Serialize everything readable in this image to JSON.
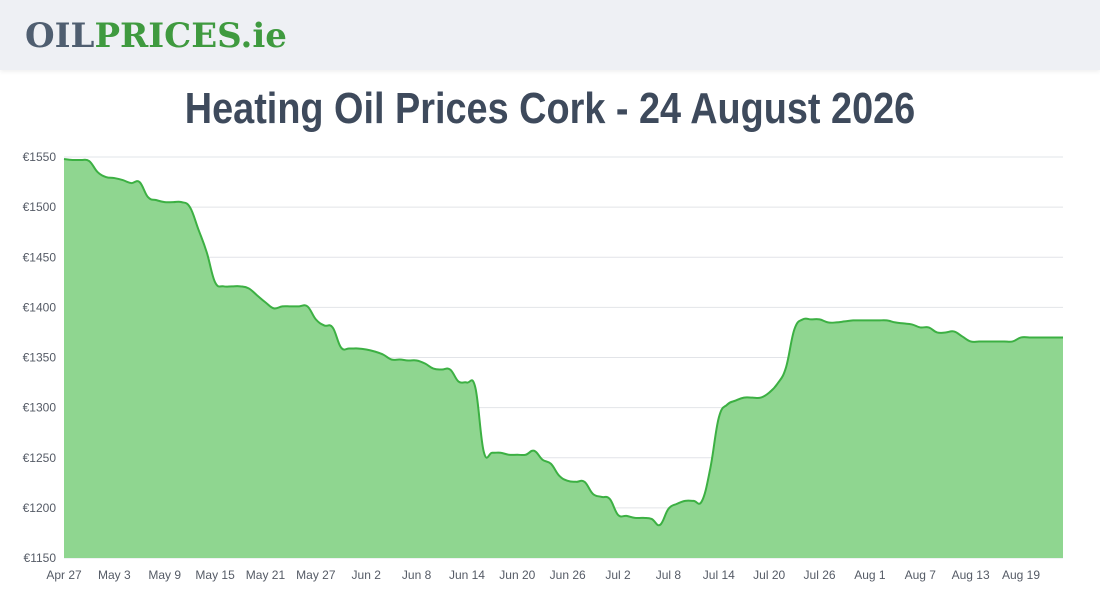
{
  "header": {
    "logo_oil": "OIL",
    "logo_prices": "PRICES",
    "logo_ie": ".ie"
  },
  "page": {
    "title": "Heating Oil Prices Cork - 24 August 2026"
  },
  "colors": {
    "line": "#3cb043",
    "fill": "#8fd690",
    "grid": "#e2e4e8"
  },
  "chart_data": {
    "type": "area",
    "title": "Heating Oil Prices Cork - 24 August 2026",
    "xlabel": "",
    "ylabel": "",
    "ylim": [
      1150,
      1550
    ],
    "y_ticks": [
      "€1150",
      "€1200",
      "€1250",
      "€1300",
      "€1350",
      "€1400",
      "€1450",
      "€1500",
      "€1550"
    ],
    "x_ticks": [
      "Apr 27",
      "May 3",
      "May 9",
      "May 15",
      "May 21",
      "May 27",
      "Jun 2",
      "Jun 8",
      "Jun 14",
      "Jun 20",
      "Jun 26",
      "Jul 2",
      "Jul 8",
      "Jul 14",
      "Jul 20",
      "Jul 26",
      "Aug 1",
      "Aug 7",
      "Aug 13",
      "Aug 19"
    ],
    "grid": true,
    "legend": "none",
    "series": [
      {
        "x": [
          "2026-04-27",
          "2026-04-28",
          "2026-04-29",
          "2026-04-30",
          "2026-05-01",
          "2026-05-02",
          "2026-05-03",
          "2026-05-04",
          "2026-05-05",
          "2026-05-06",
          "2026-05-07",
          "2026-05-08",
          "2026-05-09",
          "2026-05-10",
          "2026-05-11",
          "2026-05-12",
          "2026-05-13",
          "2026-05-14",
          "2026-05-15",
          "2026-05-16",
          "2026-05-17",
          "2026-05-18",
          "2026-05-19",
          "2026-05-20",
          "2026-05-21",
          "2026-05-22",
          "2026-05-23",
          "2026-05-24",
          "2026-05-25",
          "2026-05-26",
          "2026-05-27",
          "2026-05-28",
          "2026-05-29",
          "2026-05-30",
          "2026-05-31",
          "2026-06-01",
          "2026-06-02",
          "2026-06-03",
          "2026-06-04",
          "2026-06-05",
          "2026-06-06",
          "2026-06-07",
          "2026-06-08",
          "2026-06-09",
          "2026-06-10",
          "2026-06-11",
          "2026-06-12",
          "2026-06-13",
          "2026-06-14",
          "2026-06-15",
          "2026-06-16",
          "2026-06-17",
          "2026-06-18",
          "2026-06-19",
          "2026-06-20",
          "2026-06-21",
          "2026-06-22",
          "2026-06-23",
          "2026-06-24",
          "2026-06-25",
          "2026-06-26",
          "2026-06-27",
          "2026-06-28",
          "2026-06-29",
          "2026-06-30",
          "2026-07-01",
          "2026-07-02",
          "2026-07-03",
          "2026-07-04",
          "2026-07-05",
          "2026-07-06",
          "2026-07-07",
          "2026-07-08",
          "2026-07-09",
          "2026-07-10",
          "2026-07-11",
          "2026-07-12",
          "2026-07-13",
          "2026-07-14",
          "2026-07-15",
          "2026-07-16",
          "2026-07-17",
          "2026-07-18",
          "2026-07-19",
          "2026-07-20",
          "2026-07-21",
          "2026-07-22",
          "2026-07-23",
          "2026-07-24",
          "2026-07-25",
          "2026-07-26",
          "2026-07-27",
          "2026-07-28",
          "2026-07-29",
          "2026-07-30",
          "2026-07-31",
          "2026-08-01",
          "2026-08-02",
          "2026-08-03",
          "2026-08-04",
          "2026-08-05",
          "2026-08-06",
          "2026-08-07",
          "2026-08-08",
          "2026-08-09",
          "2026-08-10",
          "2026-08-11",
          "2026-08-12",
          "2026-08-13",
          "2026-08-14",
          "2026-08-15",
          "2026-08-16",
          "2026-08-17",
          "2026-08-18",
          "2026-08-19",
          "2026-08-20",
          "2026-08-21",
          "2026-08-22",
          "2026-08-23",
          "2026-08-24"
        ],
        "values": [
          1548,
          1547,
          1547,
          1546,
          1535,
          1530,
          1529,
          1527,
          1524,
          1525,
          1510,
          1507,
          1505,
          1505,
          1505,
          1500,
          1478,
          1455,
          1425,
          1421,
          1421,
          1421,
          1419,
          1412,
          1405,
          1399,
          1401,
          1401,
          1401,
          1401,
          1388,
          1382,
          1380,
          1360,
          1359,
          1359,
          1358,
          1356,
          1353,
          1348,
          1348,
          1347,
          1347,
          1344,
          1339,
          1338,
          1338,
          1326,
          1325,
          1320,
          1256,
          1255,
          1255,
          1253,
          1253,
          1253,
          1257,
          1248,
          1244,
          1232,
          1227,
          1226,
          1226,
          1214,
          1211,
          1209,
          1193,
          1192,
          1190,
          1190,
          1189,
          1183,
          1199,
          1204,
          1207,
          1207,
          1207,
          1240,
          1290,
          1303,
          1307,
          1310,
          1310,
          1310,
          1315,
          1324,
          1340,
          1378,
          1388,
          1388,
          1388,
          1385,
          1385,
          1386,
          1387,
          1387,
          1387,
          1387,
          1387,
          1385,
          1384,
          1383,
          1380,
          1380,
          1375,
          1375,
          1376,
          1371,
          1366,
          1366,
          1366,
          1366,
          1366,
          1366,
          1370,
          1370,
          1370,
          1370,
          1370,
          1370
        ]
      }
    ]
  }
}
